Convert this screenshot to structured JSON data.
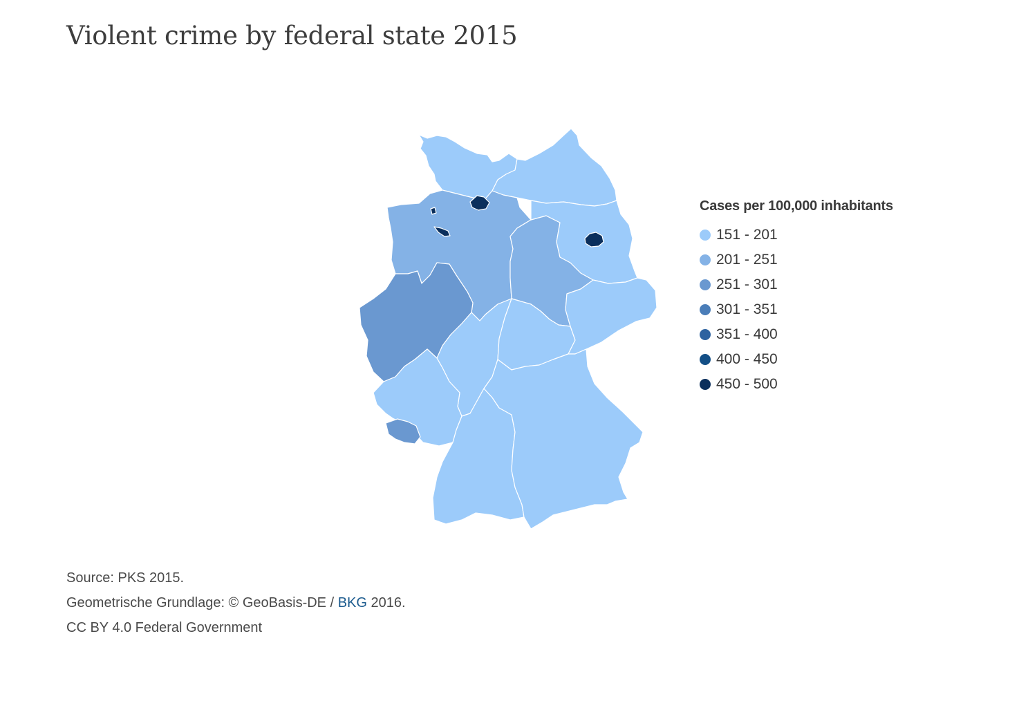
{
  "title": "Violent crime by federal state 2015",
  "legend": {
    "title": "Cases per 100,000 inhabitants",
    "items": [
      {
        "label": "151 - 201",
        "color": "#9ccbfa"
      },
      {
        "label": "201 - 251",
        "color": "#84b2e6"
      },
      {
        "label": "251 - 301",
        "color": "#6a98d0"
      },
      {
        "label": "301 - 351",
        "color": "#4a7db8"
      },
      {
        "label": "351 - 400",
        "color": "#2d62a0"
      },
      {
        "label": "400 - 450",
        "color": "#134f86"
      },
      {
        "label": "450 - 500",
        "color": "#0b2f5c"
      }
    ]
  },
  "states": [
    {
      "name": "Schleswig-Holstein",
      "range": "151 - 201",
      "color": "#9ccbfa"
    },
    {
      "name": "Hamburg",
      "range": "450 - 500",
      "color": "#0b2f5c"
    },
    {
      "name": "Mecklenburg-Vorpommern",
      "range": "151 - 201",
      "color": "#9ccbfa"
    },
    {
      "name": "Bremen",
      "range": "450 - 500",
      "color": "#0b2f5c"
    },
    {
      "name": "Niedersachsen",
      "range": "201 - 251",
      "color": "#84b2e6"
    },
    {
      "name": "Sachsen-Anhalt",
      "range": "201 - 251",
      "color": "#84b2e6"
    },
    {
      "name": "Brandenburg",
      "range": "151 - 201",
      "color": "#9ccbfa"
    },
    {
      "name": "Berlin",
      "range": "450 - 500",
      "color": "#0b2f5c"
    },
    {
      "name": "Nordrhein-Westfalen",
      "range": "251 - 301",
      "color": "#6a98d0"
    },
    {
      "name": "Hessen",
      "range": "151 - 201",
      "color": "#9ccbfa"
    },
    {
      "name": "Thüringen",
      "range": "151 - 201",
      "color": "#9ccbfa"
    },
    {
      "name": "Sachsen",
      "range": "151 - 201",
      "color": "#9ccbfa"
    },
    {
      "name": "Rheinland-Pfalz",
      "range": "151 - 201",
      "color": "#9ccbfa"
    },
    {
      "name": "Saarland",
      "range": "251 - 301",
      "color": "#6a98d0"
    },
    {
      "name": "Baden-Württemberg",
      "range": "151 - 201",
      "color": "#9ccbfa"
    },
    {
      "name": "Bayern",
      "range": "151 - 201",
      "color": "#9ccbfa"
    }
  ],
  "footer": {
    "source": "Source: PKS 2015.",
    "geo_prefix": "Geometrische Grundlage: © GeoBasis-DE / ",
    "geo_link": "BKG",
    "geo_suffix": " 2016.",
    "license": "CC BY 4.0 Federal Government"
  }
}
